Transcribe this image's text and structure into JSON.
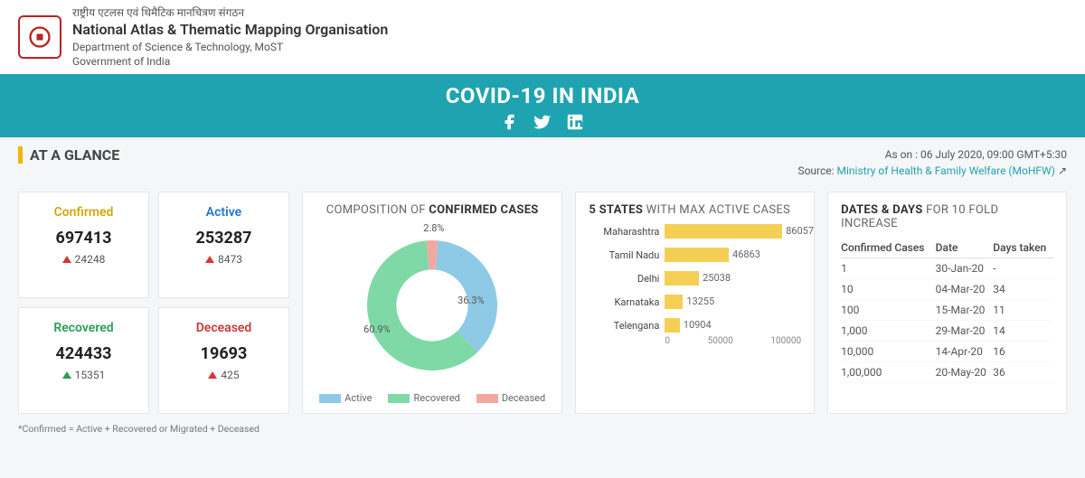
{
  "header": {
    "hindi": "राष्ट्रीय एटलस एवं थिमैटिक मानचित्रण संगठन",
    "org": "National Atlas & Thematic Mapping Organisation",
    "dept": "Department of Science & Technology, MoST",
    "gov": "Government of India"
  },
  "banner": {
    "title": "COVID-19 IN INDIA"
  },
  "glance": {
    "heading": "AT A GLANCE",
    "as_on_prefix": "As on : ",
    "as_on": "06 July 2020, 09:00 GMT+5:30",
    "source_prefix": "Source: ",
    "source": "Ministry of Health & Family Welfare (MoHFW)"
  },
  "colors": {
    "confirmed": "#d6a40c",
    "active": "#1f77c9",
    "recovered": "#2a9d57",
    "deceased": "#c23b3b",
    "pie_active": "#8ecae6",
    "pie_recovered": "#7fd9a6",
    "pie_deceased": "#f4a7a0",
    "bar": "#f5cf55"
  },
  "cards": {
    "confirmed": {
      "label": "Confirmed",
      "value": "697413",
      "delta": "24248",
      "arrow": "red"
    },
    "active": {
      "label": "Active",
      "value": "253287",
      "delta": "8473",
      "arrow": "red"
    },
    "recovered": {
      "label": "Recovered",
      "value": "424433",
      "delta": "15351",
      "arrow": "green"
    },
    "deceased": {
      "label": "Deceased",
      "value": "19693",
      "delta": "425",
      "arrow": "red"
    }
  },
  "donut": {
    "title_pre": "COMPOSITION OF ",
    "title_b": "CONFIRMED CASES",
    "slices": [
      {
        "label": "Active",
        "pct": 36.3,
        "text": "36.3%",
        "color": "#8ecae6"
      },
      {
        "label": "Recovered",
        "pct": 60.9,
        "text": "60.9%",
        "color": "#7fd9a6"
      },
      {
        "label": "Deceased",
        "pct": 2.8,
        "text": "2.8%",
        "color": "#f4a7a0"
      }
    ]
  },
  "barchart": {
    "title_b": "5 STATES",
    "title_post": " WITH MAX ACTIVE CASES",
    "max": 100000,
    "ticks": [
      "0",
      "50000",
      "100000"
    ],
    "rows": [
      {
        "name": "Maharashtra",
        "value": 86057
      },
      {
        "name": "Tamil Nadu",
        "value": 46863
      },
      {
        "name": "Delhi",
        "value": 25038
      },
      {
        "name": "Karnataka",
        "value": 13255
      },
      {
        "name": "Telengana",
        "value": 10904
      }
    ]
  },
  "table": {
    "title_b": "DATES & DAYS",
    "title_post": " FOR 10 FOLD INCREASE",
    "columns": [
      "Confirmed Cases",
      "Date",
      "Days taken"
    ],
    "rows": [
      [
        "1",
        "30-Jan-20",
        "-"
      ],
      [
        "10",
        "04-Mar-20",
        "34"
      ],
      [
        "100",
        "15-Mar-20",
        "11"
      ],
      [
        "1,000",
        "29-Mar-20",
        "14"
      ],
      [
        "10,000",
        "14-Apr-20",
        "16"
      ],
      [
        "1,00,000",
        "20-May-20",
        "36"
      ]
    ]
  },
  "footnote": "*Confirmed = Active + Recovered or Migrated + Deceased"
}
